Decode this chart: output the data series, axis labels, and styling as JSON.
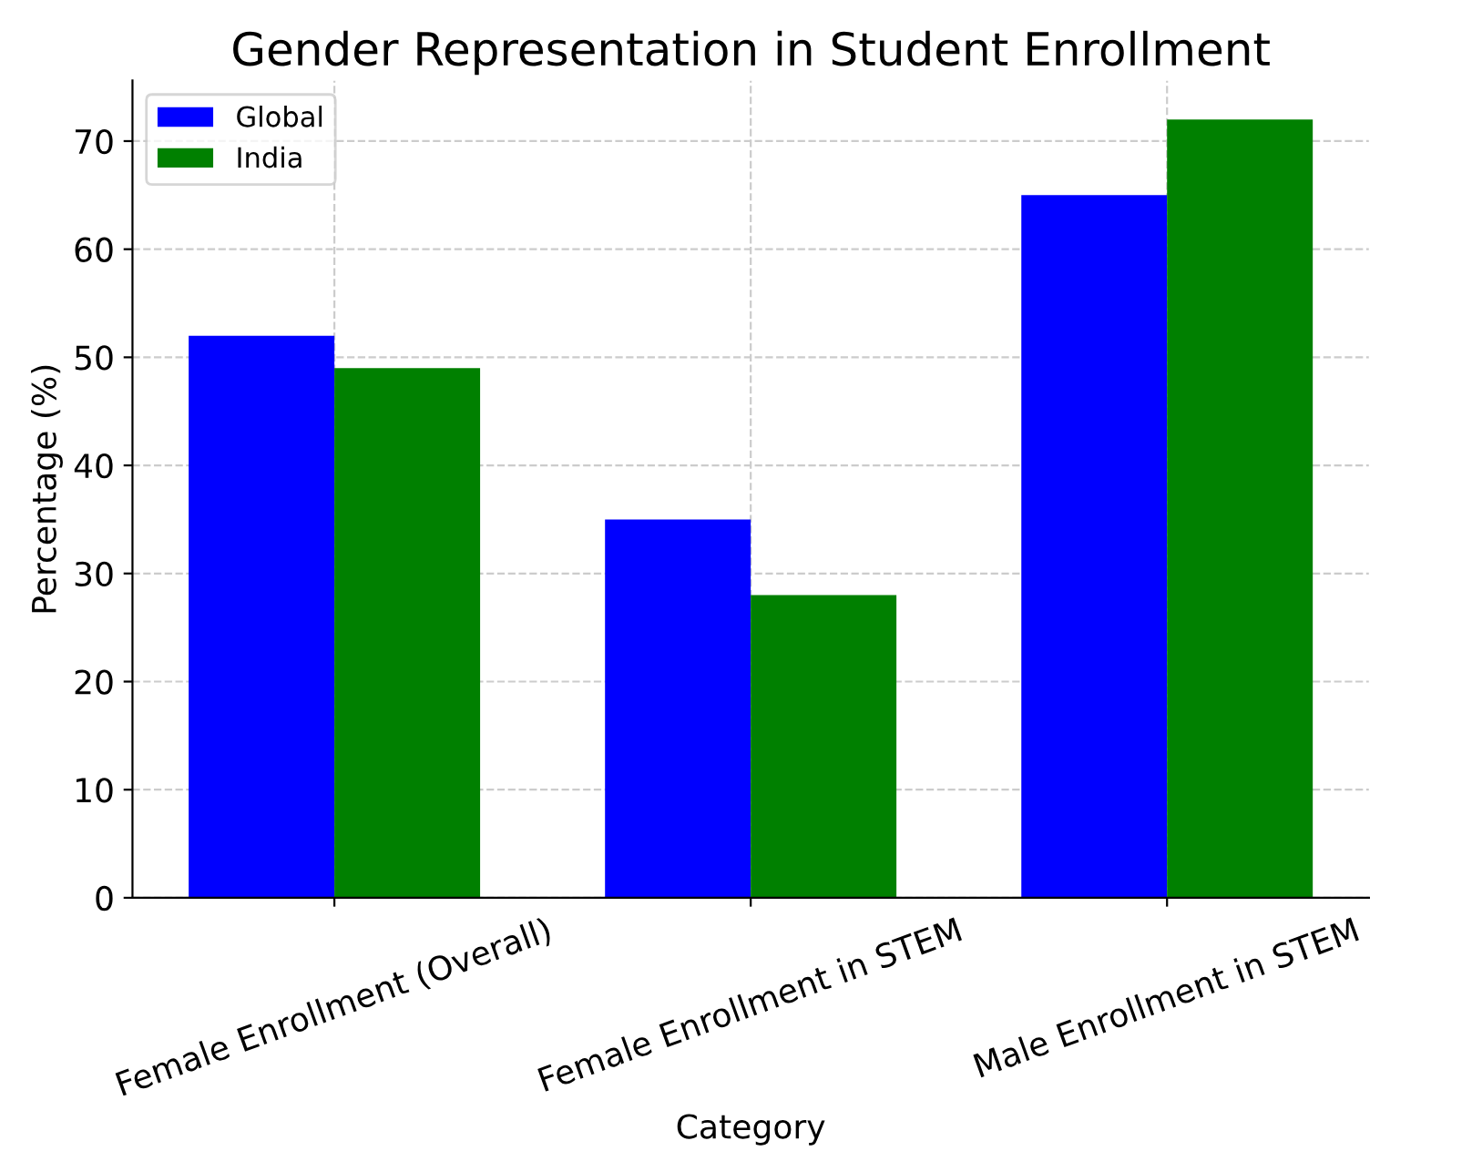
{
  "chart_data": {
    "type": "bar",
    "title": "Gender Representation in Student Enrollment",
    "xlabel": "Category",
    "ylabel": "Percentage (%)",
    "categories": [
      "Female Enrollment (Overall)",
      "Female Enrollment in STEM",
      "Male Enrollment in STEM"
    ],
    "series": [
      {
        "name": "Global",
        "color": "#0000ff",
        "values": [
          52,
          35,
          65
        ]
      },
      {
        "name": "India",
        "color": "#008000",
        "values": [
          49,
          28,
          72
        ]
      }
    ],
    "ylim": [
      0,
      75.6
    ],
    "yticks": [
      0,
      10,
      20,
      30,
      40,
      50,
      60,
      70
    ],
    "grid": true,
    "legend": "top left"
  }
}
